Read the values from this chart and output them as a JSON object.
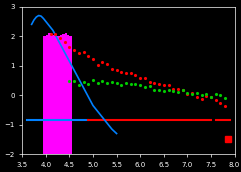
{
  "background_color": "#000000",
  "title": "",
  "xlim_log": [
    3.5,
    8.0
  ],
  "ylim_log": [
    -2.0,
    3.0
  ],
  "blue_line": {
    "x": [
      3.7,
      3.75,
      3.8,
      3.85,
      3.9,
      3.95,
      4.0,
      4.05,
      4.1,
      4.15,
      4.2,
      4.25,
      4.3,
      4.35,
      4.4,
      4.45,
      4.5,
      4.55,
      4.6,
      4.65,
      4.7,
      4.75,
      4.8,
      4.85,
      4.9,
      4.95,
      5.0,
      5.1,
      5.2,
      5.3,
      5.4,
      5.5
    ],
    "y": [
      2.4,
      2.55,
      2.65,
      2.7,
      2.68,
      2.6,
      2.5,
      2.4,
      2.3,
      2.2,
      2.05,
      1.9,
      1.75,
      1.6,
      1.45,
      1.3,
      1.15,
      1.0,
      0.85,
      0.7,
      0.55,
      0.4,
      0.25,
      0.1,
      -0.05,
      -0.2,
      -0.35,
      -0.55,
      -0.75,
      -0.95,
      -1.15,
      -1.3
    ],
    "color": "#0080ff"
  },
  "magenta_bars": {
    "x_start_log": 3.95,
    "x_end_log": 4.55,
    "y_bottom_log": -2.0,
    "bar_tops_log": [
      2.0,
      2.05,
      2.1,
      2.08,
      2.05,
      2.0,
      2.02,
      2.05,
      2.08,
      2.1,
      2.05,
      2.0
    ],
    "color": "#ff00ff"
  },
  "red_points": {
    "x_log": [
      4.1,
      4.2,
      4.3,
      4.4,
      4.5,
      4.6,
      4.7,
      4.8,
      4.9,
      5.0,
      5.1,
      5.2,
      5.3,
      5.4,
      5.5,
      5.6,
      5.7,
      5.8,
      5.9,
      6.0,
      6.1,
      6.2,
      6.3,
      6.4,
      6.5,
      6.6,
      6.7,
      6.8,
      6.9,
      7.0,
      7.1,
      7.2,
      7.3,
      7.4,
      7.5,
      7.6,
      7.7,
      7.8
    ],
    "y_log": [
      2.1,
      2.0,
      1.9,
      1.8,
      1.7,
      1.6,
      1.5,
      1.4,
      1.3,
      1.2,
      1.1,
      1.05,
      1.0,
      0.95,
      0.9,
      0.85,
      0.8,
      0.75,
      0.7,
      0.6,
      0.55,
      0.5,
      0.45,
      0.4,
      0.35,
      0.3,
      0.25,
      0.2,
      0.15,
      0.1,
      0.05,
      0.0,
      -0.05,
      -0.1,
      -0.15,
      -0.2,
      -0.25,
      -0.3
    ],
    "color": "#ff0000"
  },
  "green_points": {
    "x_log": [
      4.5,
      4.6,
      4.7,
      4.8,
      4.9,
      5.0,
      5.1,
      5.2,
      5.3,
      5.4,
      5.5,
      5.6,
      5.7,
      5.8,
      5.9,
      6.0,
      6.1,
      6.2,
      6.3,
      6.4,
      6.5,
      6.6,
      6.7,
      6.8,
      6.9,
      7.0,
      7.1,
      7.2,
      7.3,
      7.4,
      7.5,
      7.6,
      7.7,
      7.8
    ],
    "y_log": [
      0.45,
      0.5,
      0.4,
      0.45,
      0.42,
      0.48,
      0.44,
      0.46,
      0.42,
      0.44,
      0.4,
      0.38,
      0.36,
      0.34,
      0.32,
      0.3,
      0.28,
      0.26,
      0.24,
      0.22,
      0.2,
      0.18,
      0.16,
      0.14,
      0.12,
      0.1,
      0.08,
      0.06,
      0.04,
      0.02,
      0.0,
      -0.02,
      -0.04,
      -0.06
    ],
    "color": "#00cc00"
  },
  "blue_hline": {
    "x_start_log": 3.6,
    "x_end_log": 4.9,
    "y_log": -0.85,
    "color": "#0080ff"
  },
  "red_hline": {
    "x_start_log": 4.9,
    "x_end_log": 7.5,
    "y_log": -0.85,
    "color": "#ff0000"
  },
  "red_hline2": {
    "x_start_log": 7.6,
    "x_end_log": 7.9,
    "y_log": -0.85,
    "color": "#ff0000"
  },
  "lone_red_point": {
    "x_log": 7.85,
    "y_log": -1.5,
    "color": "#ff0000"
  },
  "axes_color": "#ffffff",
  "tick_color": "#ffffff"
}
